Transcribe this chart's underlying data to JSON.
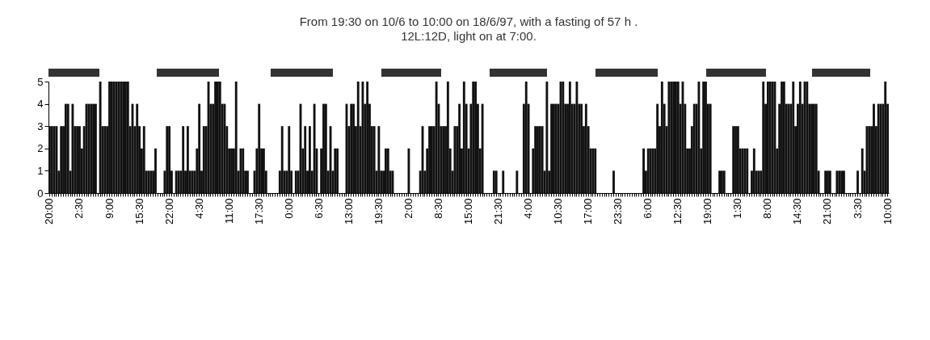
{
  "chart_data": {
    "type": "bar",
    "title": "From 19:30 on 10/6 to 10:00 on 18/6/97, with a fasting of 57 h .",
    "subtitle": "12L:12D, light on at 7:00.",
    "categories": [
      "20:00",
      null,
      null,
      null,
      null,
      null,
      null,
      null,
      null,
      null,
      null,
      null,
      null,
      "2:30",
      null,
      null,
      null,
      null,
      null,
      null,
      null,
      null,
      null,
      null,
      null,
      null,
      "9:00",
      null,
      null,
      null,
      null,
      null,
      null,
      null,
      null,
      null,
      null,
      null,
      null,
      "15:30",
      null,
      null,
      null,
      null,
      null,
      null,
      null,
      null,
      null,
      null,
      null,
      null,
      "22:00",
      null,
      null,
      null,
      null,
      null,
      null,
      null,
      null,
      null,
      null,
      null,
      null,
      "4:30",
      null,
      null,
      null,
      null,
      null,
      null,
      null,
      null,
      null,
      null,
      null,
      null,
      "11:00",
      null,
      null,
      null,
      null,
      null,
      null,
      null,
      null,
      null,
      null,
      null,
      null,
      "17:30",
      null,
      null,
      null,
      null,
      null,
      null,
      null,
      null,
      null,
      null,
      null,
      null,
      "0:00",
      null,
      null,
      null,
      null,
      null,
      null,
      null,
      null,
      null,
      null,
      null,
      null,
      "6:30",
      null,
      null,
      null,
      null,
      null,
      null,
      null,
      null,
      null,
      null,
      null,
      null,
      "13:00",
      null,
      null,
      null,
      null,
      null,
      null,
      null,
      null,
      null,
      null,
      null,
      null,
      "19:30",
      null,
      null,
      null,
      null,
      null,
      null,
      null,
      null,
      null,
      null,
      null,
      null,
      "2:00",
      null,
      null,
      null,
      null,
      null,
      null,
      null,
      null,
      null,
      null,
      null,
      null,
      "8:30",
      null,
      null,
      null,
      null,
      null,
      null,
      null,
      null,
      null,
      null,
      null,
      null,
      "15:00",
      null,
      null,
      null,
      null,
      null,
      null,
      null,
      null,
      null,
      null,
      null,
      null,
      "21:30",
      null,
      null,
      null,
      null,
      null,
      null,
      null,
      null,
      null,
      null,
      null,
      null,
      "4:00",
      null,
      null,
      null,
      null,
      null,
      null,
      null,
      null,
      null,
      null,
      null,
      null,
      "10:30",
      null,
      null,
      null,
      null,
      null,
      null,
      null,
      null,
      null,
      null,
      null,
      null,
      "17:00",
      null,
      null,
      null,
      null,
      null,
      null,
      null,
      null,
      null,
      null,
      null,
      null,
      "23:30",
      null,
      null,
      null,
      null,
      null,
      null,
      null,
      null,
      null,
      null,
      null,
      null,
      "6:00",
      null,
      null,
      null,
      null,
      null,
      null,
      null,
      null,
      null,
      null,
      null,
      null,
      "12:30",
      null,
      null,
      null,
      null,
      null,
      null,
      null,
      null,
      null,
      null,
      null,
      null,
      "19:00",
      null,
      null,
      null,
      null,
      null,
      null,
      null,
      null,
      null,
      null,
      null,
      null,
      "1:30",
      null,
      null,
      null,
      null,
      null,
      null,
      null,
      null,
      null,
      null,
      null,
      null,
      "8:00",
      null,
      null,
      null,
      null,
      null,
      null,
      null,
      null,
      null,
      null,
      null,
      null,
      "14:30",
      null,
      null,
      null,
      null,
      null,
      null,
      null,
      null,
      null,
      null,
      null,
      null,
      "21:00",
      null,
      null,
      null,
      null,
      null,
      null,
      null,
      null,
      null,
      null,
      null,
      null,
      "3:30",
      null,
      null,
      null,
      null,
      null,
      null,
      null,
      null,
      null,
      null,
      null,
      null,
      "10:00"
    ],
    "values": [
      3,
      3,
      3,
      3,
      1,
      3,
      3,
      4,
      4,
      1,
      4,
      3,
      3,
      3,
      2,
      3,
      4,
      4,
      4,
      4,
      4,
      0,
      5,
      3,
      3,
      3,
      5,
      5,
      5,
      5,
      5,
      5,
      5,
      5,
      5,
      3,
      4,
      3,
      4,
      3,
      2,
      3,
      1,
      1,
      1,
      1,
      2,
      0,
      0,
      0,
      1,
      3,
      3,
      1,
      0,
      1,
      1,
      1,
      3,
      1,
      3,
      1,
      1,
      1,
      2,
      4,
      1,
      3,
      3,
      5,
      4,
      4,
      5,
      5,
      5,
      4,
      4,
      3,
      2,
      2,
      2,
      5,
      1,
      2,
      2,
      1,
      1,
      0,
      0,
      1,
      2,
      4,
      2,
      2,
      1,
      0,
      0,
      0,
      0,
      0,
      1,
      3,
      1,
      1,
      3,
      1,
      0,
      1,
      1,
      4,
      2,
      3,
      1,
      3,
      1,
      4,
      2,
      0,
      2,
      4,
      4,
      1,
      3,
      1,
      2,
      2,
      0,
      0,
      0,
      4,
      3,
      4,
      4,
      3,
      5,
      3,
      5,
      4,
      5,
      4,
      3,
      3,
      1,
      3,
      1,
      1,
      2,
      2,
      1,
      1,
      0,
      0,
      0,
      0,
      0,
      0,
      2,
      0,
      0,
      0,
      0,
      1,
      3,
      1,
      2,
      3,
      3,
      3,
      5,
      4,
      3,
      3,
      3,
      5,
      2,
      1,
      3,
      3,
      4,
      2,
      5,
      4,
      2,
      4,
      5,
      5,
      4,
      2,
      4,
      0,
      0,
      0,
      0,
      1,
      1,
      0,
      0,
      1,
      0,
      0,
      0,
      0,
      0,
      1,
      0,
      0,
      4,
      5,
      4,
      0,
      2,
      3,
      3,
      3,
      3,
      1,
      5,
      1,
      4,
      4,
      4,
      4,
      5,
      5,
      4,
      4,
      5,
      4,
      4,
      5,
      4,
      4,
      3,
      4,
      3,
      2,
      2,
      2,
      0,
      0,
      0,
      0,
      0,
      0,
      0,
      1,
      0,
      0,
      0,
      0,
      0,
      0,
      0,
      0,
      0,
      0,
      0,
      0,
      2,
      1,
      2,
      2,
      2,
      2,
      4,
      3,
      5,
      4,
      3,
      5,
      5,
      5,
      5,
      5,
      4,
      5,
      4,
      2,
      2,
      3,
      4,
      4,
      5,
      2,
      5,
      5,
      4,
      4,
      0,
      0,
      0,
      1,
      1,
      1,
      0,
      0,
      0,
      3,
      3,
      3,
      2,
      2,
      2,
      2,
      0,
      1,
      2,
      1,
      1,
      1,
      5,
      4,
      5,
      5,
      5,
      5,
      2,
      4,
      5,
      5,
      4,
      4,
      4,
      5,
      3,
      4,
      5,
      4,
      5,
      5,
      4,
      4,
      4,
      4,
      1,
      0,
      0,
      1,
      1,
      1,
      0,
      0,
      1,
      1,
      1,
      1,
      0,
      0,
      0,
      0,
      0,
      1,
      0,
      2,
      1,
      3,
      3,
      3,
      4,
      3,
      4,
      4,
      4,
      5,
      4
    ],
    "color": "#111111",
    "ylim": [
      0,
      5
    ],
    "yticks": [
      0,
      1,
      2,
      3,
      4,
      5
    ]
  }
}
